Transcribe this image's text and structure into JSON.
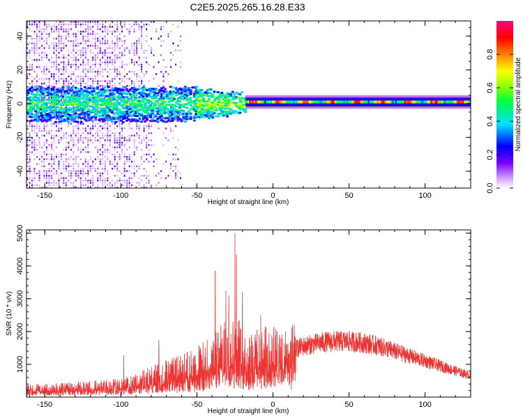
{
  "title": "C2E5.2025.265.16.28.E33",
  "colors": {
    "snr_line": "#ee3333",
    "sweep_band": "#2a2a2a",
    "frame": "#000000"
  },
  "chart_data": [
    {
      "type": "heatmap",
      "xlabel": "Height of straight line (km)",
      "ylabel": "Frequency (Hz)",
      "xlim": [
        -162,
        130
      ],
      "ylim": [
        -50,
        49
      ],
      "xticks": [
        -150,
        -100,
        -50,
        0,
        50,
        100
      ],
      "yticks": [
        -40,
        -20,
        0,
        20,
        40
      ],
      "colormap": "rainbow (purple-blue-cyan-green-yellow-orange-red-magenta)",
      "colorbar": {
        "label": "Normalized spectral amplitude",
        "range": [
          0.0,
          1.0
        ],
        "ticks": [
          0.0,
          0.2,
          0.4,
          0.6,
          0.8
        ]
      },
      "features": [
        {
          "name": "noise scatter",
          "x_range": [
            -162,
            -65
          ],
          "freq_range": [
            -50,
            49
          ],
          "amplitude": "0.0-0.2"
        },
        {
          "name": "broad signal",
          "x_range": [
            -162,
            -18
          ],
          "freq_range": [
            -10,
            10
          ],
          "amplitude": "0.1-0.5"
        },
        {
          "name": "narrow tone",
          "x_range": [
            -18,
            130
          ],
          "freq_range": [
            -1,
            3
          ],
          "amplitude": "0.6-1.0"
        }
      ]
    },
    {
      "type": "line",
      "xlabel": "Height of straight line (km)",
      "ylabel": "SNR (10 * v/v)",
      "xlim": [
        -162,
        130
      ],
      "ylim": [
        0,
        5100
      ],
      "xticks": [
        -150,
        -100,
        -50,
        0,
        50,
        100
      ],
      "yticks": [
        1000,
        2000,
        3000,
        4000,
        5000
      ],
      "series": [
        {
          "envelope_x": [
            -162,
            -140,
            -120,
            -100,
            -90,
            -80,
            -70,
            -60,
            -50,
            -40,
            -35,
            -30,
            -27,
            -25,
            -22,
            -20,
            -15,
            -10,
            -5,
            0,
            5,
            10,
            20,
            30,
            40,
            50,
            60,
            70,
            80,
            90,
            100,
            110,
            120,
            130
          ],
          "envelope_y": [
            250,
            280,
            320,
            380,
            480,
            600,
            750,
            850,
            1000,
            1250,
            1400,
            1550,
            1700,
            1650,
            1550,
            1400,
            1350,
            1350,
            1400,
            1450,
            1300,
            1400,
            1550,
            1650,
            1700,
            1700,
            1650,
            1550,
            1400,
            1250,
            1100,
            950,
            800,
            650
          ],
          "peaks": [
            {
              "x": -38,
              "y": 3850
            },
            {
              "x": -31,
              "y": 3250
            },
            {
              "x": -29,
              "y": 3100
            },
            {
              "x": -25,
              "y": 5000
            },
            {
              "x": -24,
              "y": 4350
            },
            {
              "x": -20,
              "y": 3200
            },
            {
              "x": -8,
              "y": 2500
            },
            {
              "x": -75,
              "y": 1750
            },
            {
              "x": -98,
              "y": 1280
            }
          ]
        }
      ]
    }
  ]
}
